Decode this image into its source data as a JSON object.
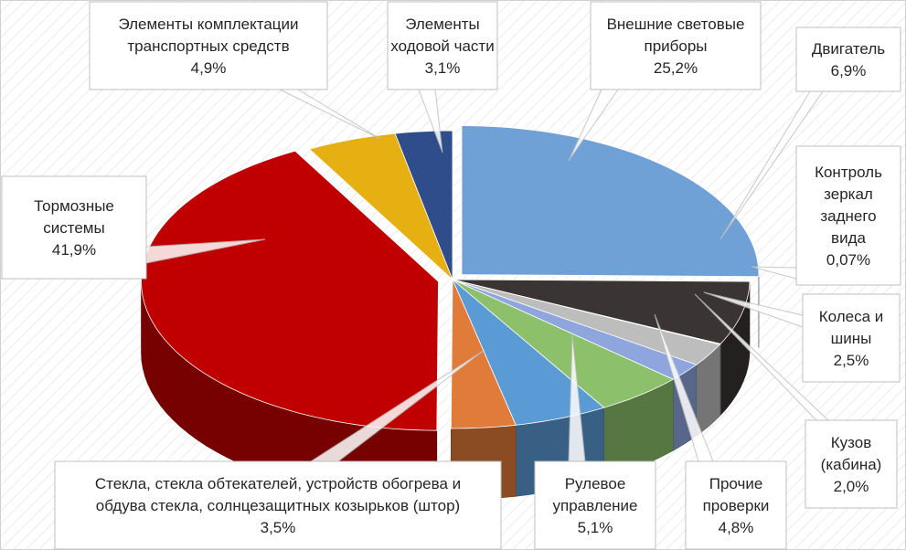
{
  "chart_data": {
    "type": "pie",
    "style": "3d-exploded-pie-with-callouts",
    "title": "",
    "slices": [
      {
        "label_lines": [
          "Внешние световые",
          "приборы"
        ],
        "value": 25.2,
        "value_text": "25,2%",
        "color": "#6fa0d6"
      },
      {
        "label_lines": [
          "Двигатель"
        ],
        "value": 6.9,
        "value_text": "6,9%",
        "color": "#3a3434"
      },
      {
        "label_lines": [
          "Контроль",
          "зеркал",
          "заднего",
          "вида"
        ],
        "value": 0.07,
        "value_text": "0,07%",
        "color": "#bfbfbf"
      },
      {
        "label_lines": [
          "Колеса и",
          "шины"
        ],
        "value": 2.5,
        "value_text": "2,5%",
        "color": "#bdbdbd"
      },
      {
        "label_lines": [
          "Кузов",
          "(кабина)"
        ],
        "value": 2.0,
        "value_text": "2,0%",
        "color": "#8ea6dd"
      },
      {
        "label_lines": [
          "Прочие",
          "проверки"
        ],
        "value": 4.8,
        "value_text": "4,8%",
        "color": "#8cc06a"
      },
      {
        "label_lines": [
          "Рулевое",
          "управление"
        ],
        "value": 5.1,
        "value_text": "5,1%",
        "color": "#5b9bd5"
      },
      {
        "label_lines": [
          "Стекла, стекла обтекателей, устройств обогрева и",
          "обдува стекла, солнцезащитных козырьков (штор)"
        ],
        "value": 3.5,
        "value_text": "3,5%",
        "color": "#e07b39"
      },
      {
        "label_lines": [
          "Тормозные",
          "системы"
        ],
        "value": 41.9,
        "value_text": "41,9%",
        "color": "#c00000"
      },
      {
        "label_lines": [
          "Элементы комплектации",
          "транспортных средств"
        ],
        "value": 4.9,
        "value_text": "4,9%",
        "color": "#e6b012"
      },
      {
        "label_lines": [
          "Элементы",
          "ходовой части"
        ],
        "value": 3.1,
        "value_text": "3,1%",
        "color": "#2f4d8a"
      }
    ]
  }
}
